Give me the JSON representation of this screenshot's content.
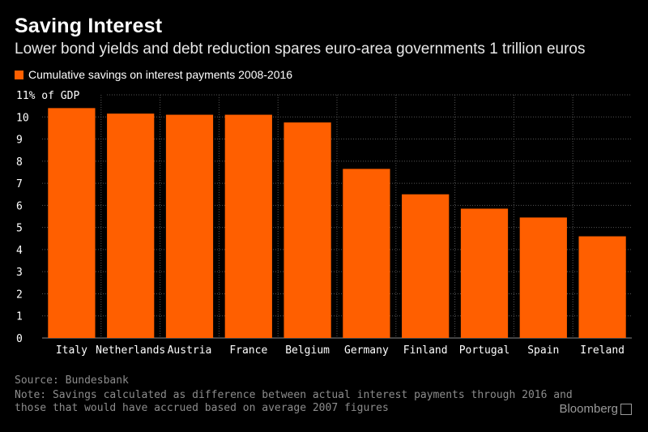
{
  "header": {
    "title": "Saving Interest",
    "subtitle": "Lower bond yields and debt reduction spares euro-area governments 1 trillion euros"
  },
  "colors": {
    "bar": "#FF5F00",
    "background": "#000000",
    "grid": "#555555",
    "text": "#FFFFFF",
    "note": "#8C8C8C"
  },
  "chart_data": {
    "type": "bar",
    "title": "Saving Interest",
    "ylabel": "% of GDP",
    "ytick_top_label": "11% of GDP",
    "legend": "Cumulative savings on interest payments 2008-2016",
    "categories": [
      "Italy",
      "Netherlands",
      "Austria",
      "France",
      "Belgium",
      "Germany",
      "Finland",
      "Portugal",
      "Spain",
      "Ireland"
    ],
    "values": [
      10.4,
      10.15,
      10.1,
      10.1,
      9.75,
      7.65,
      6.5,
      5.85,
      5.45,
      4.6
    ],
    "ylim": [
      0,
      11
    ],
    "yticks": [
      0,
      1,
      2,
      3,
      4,
      5,
      6,
      7,
      8,
      9,
      10
    ],
    "grid": true
  },
  "footer": {
    "source": "Source: Bundesbank",
    "note_line1": "Note: Savings calculated as difference between actual interest payments through 2016 and",
    "note_line2": "those that would have accrued based on average 2007 figures",
    "brand": "Bloomberg",
    "brand_icon": "bloomberg-chart-icon"
  }
}
